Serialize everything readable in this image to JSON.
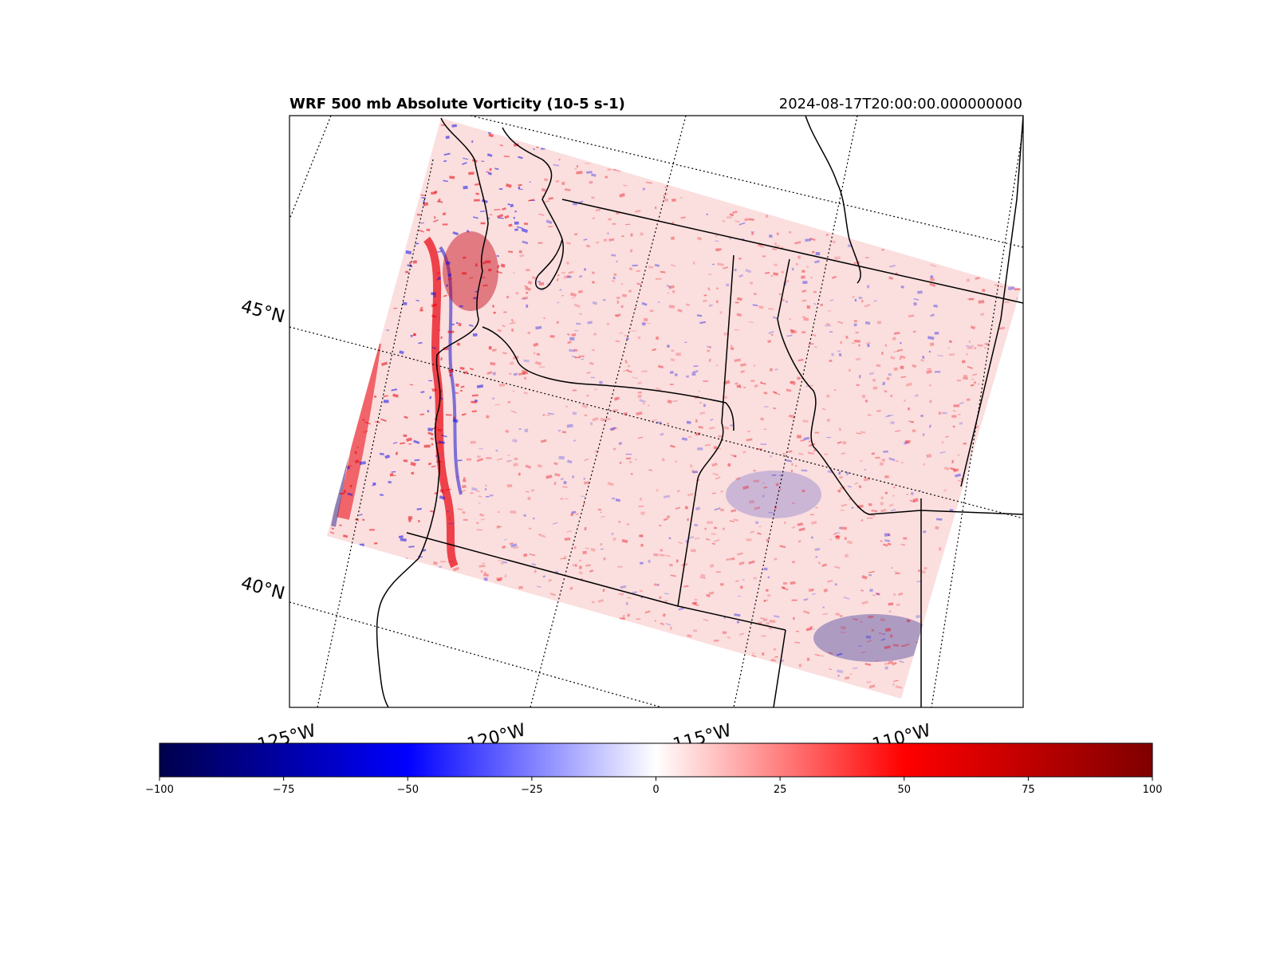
{
  "title": {
    "left": "WRF 500 mb Absolute Vorticity (10-5 s-1)",
    "right": "2024-08-17T20:00:00.000000000"
  },
  "map": {
    "lat_labels": [
      "45°N",
      "40°N"
    ],
    "lon_labels": [
      "125°W",
      "120°W",
      "115°W",
      "110°W"
    ],
    "field_colors": {
      "background": "#fbdede",
      "positive": "#e8000b",
      "negative": "#1010e8",
      "coast": "#000000"
    }
  },
  "colorbar": {
    "colormap": "seismic",
    "min": -100,
    "max": 100,
    "ticks": [
      "−100",
      "−75",
      "−50",
      "−25",
      "0",
      "25",
      "50",
      "75",
      "100"
    ],
    "colors": [
      "#00004c",
      "#0000ff",
      "#ffffff",
      "#ff0000",
      "#7f0000"
    ]
  }
}
